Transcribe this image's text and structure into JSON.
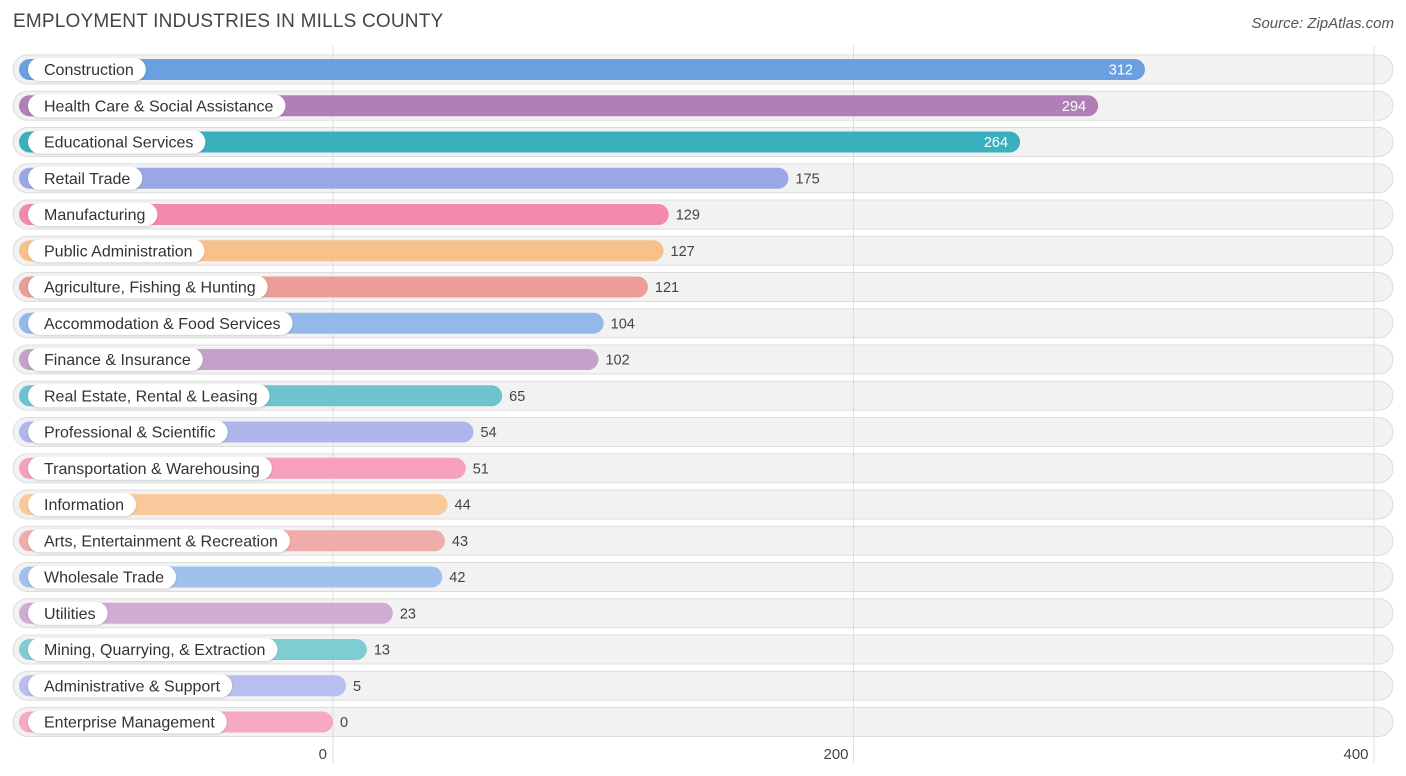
{
  "title": "EMPLOYMENT INDUSTRIES IN MILLS COUNTY",
  "source": "Source: ZipAtlas.com",
  "chart_data": {
    "type": "bar",
    "orientation": "horizontal",
    "title": "EMPLOYMENT INDUSTRIES IN MILLS COUNTY",
    "xlabel": "",
    "ylabel": "",
    "xlim": [
      0,
      400
    ],
    "xticks": [
      0,
      200,
      400
    ],
    "grid": true,
    "categories": [
      "Construction",
      "Health Care & Social Assistance",
      "Educational Services",
      "Retail Trade",
      "Manufacturing",
      "Public Administration",
      "Agriculture, Fishing & Hunting",
      "Accommodation & Food Services",
      "Finance & Insurance",
      "Real Estate, Rental & Leasing",
      "Professional & Scientific",
      "Transportation & Warehousing",
      "Information",
      "Arts, Entertainment & Recreation",
      "Wholesale Trade",
      "Utilities",
      "Mining, Quarrying, & Extraction",
      "Administrative & Support",
      "Enterprise Management"
    ],
    "values": [
      312,
      294,
      264,
      175,
      129,
      127,
      121,
      104,
      102,
      65,
      54,
      51,
      44,
      43,
      42,
      23,
      13,
      5,
      0
    ],
    "colors": [
      "#6a9fe0",
      "#b07fb6",
      "#3aafbd",
      "#9ba6e6",
      "#f28aac",
      "#f8c08a",
      "#eb9d98",
      "#94b9e9",
      "#c6a0cb",
      "#6ec4cd",
      "#aeb6ec",
      "#f6a0bc",
      "#f9c99c",
      "#f0aca8",
      "#9fc1ee",
      "#cfadd3",
      "#7fcdd3",
      "#b8bff0",
      "#f7a8c3"
    ]
  }
}
